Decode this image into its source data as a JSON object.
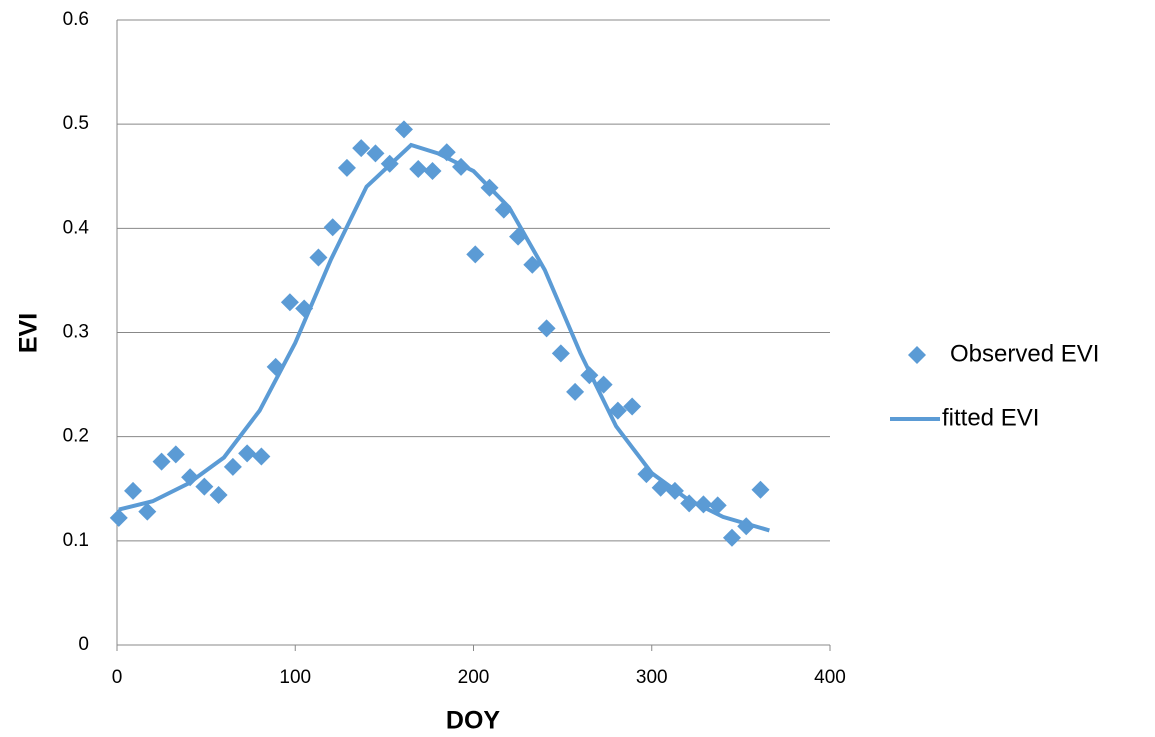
{
  "chart_data": {
    "type": "scatter",
    "xlabel": "DOY",
    "ylabel": "EVI",
    "xlim": [
      0,
      400
    ],
    "xticks": [
      0,
      100,
      200,
      300,
      400
    ],
    "ylim": [
      0,
      0.6
    ],
    "yticks": [
      0,
      0.1,
      0.2,
      0.3,
      0.4,
      0.5,
      0.6
    ],
    "grid": true,
    "legend": "right",
    "series": [
      {
        "name": "Observed EVI",
        "color": "#5b9bd5",
        "mode": "markers",
        "x": [
          1,
          9,
          17,
          25,
          33,
          41,
          49,
          57,
          65,
          73,
          81,
          89,
          97,
          105,
          113,
          121,
          129,
          137,
          145,
          153,
          161,
          169,
          177,
          185,
          193,
          201,
          209,
          217,
          225,
          233,
          241,
          249,
          257,
          265,
          273,
          281,
          289,
          297,
          305,
          313,
          321,
          329,
          337,
          345,
          353,
          361
        ],
        "values": [
          0.122,
          0.148,
          0.128,
          0.176,
          0.183,
          0.161,
          0.152,
          0.144,
          0.171,
          0.184,
          0.181,
          0.267,
          0.329,
          0.323,
          0.372,
          0.401,
          0.458,
          0.477,
          0.472,
          0.462,
          0.495,
          0.457,
          0.455,
          0.473,
          0.459,
          0.375,
          0.439,
          0.418,
          0.392,
          0.365,
          0.304,
          0.28,
          0.243,
          0.259,
          0.25,
          0.225,
          0.229,
          0.164,
          0.151,
          0.148,
          0.136,
          0.135,
          0.134,
          0.103,
          0.114,
          0.149
        ]
      },
      {
        "name": "fitted EVI",
        "color": "#5b9bd5",
        "mode": "line",
        "x": [
          1,
          20,
          40,
          60,
          80,
          100,
          120,
          140,
          165,
          180,
          200,
          220,
          240,
          260,
          280,
          300,
          320,
          340,
          366
        ],
        "values": [
          0.13,
          0.138,
          0.155,
          0.18,
          0.225,
          0.29,
          0.37,
          0.44,
          0.48,
          0.472,
          0.455,
          0.42,
          0.36,
          0.28,
          0.21,
          0.165,
          0.14,
          0.123,
          0.11
        ]
      }
    ]
  }
}
